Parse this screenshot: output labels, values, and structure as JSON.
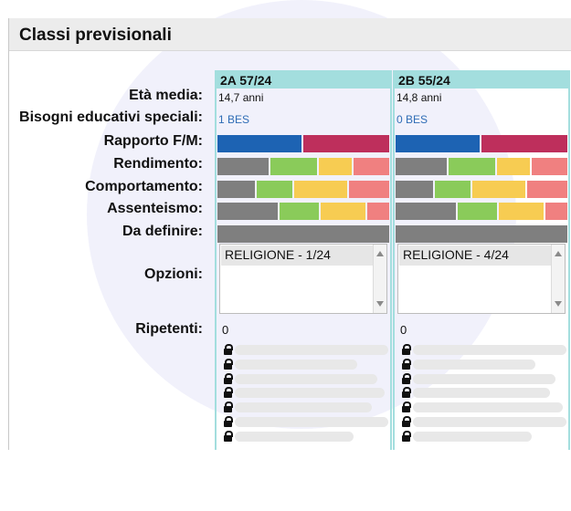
{
  "header": {
    "title": "Classi previsionali"
  },
  "labels": {
    "eta_media": "Età media:",
    "bes": "Bisogni educativi speciali:",
    "rapporto": "Rapporto F/M:",
    "rendimento": "Rendimento:",
    "comportamento": "Comportamento:",
    "assenteismo": "Assenteismo:",
    "da_definire": "Da definire:",
    "opzioni": "Opzioni:",
    "ripetenti": "Ripetenti:"
  },
  "colors": {
    "male": "#1d63b3",
    "female": "#be2f5c",
    "gray": "#7f7f7f",
    "green": "#8acb5a",
    "yellow": "#f7cc52",
    "red": "#f08080",
    "column_accent": "#a3dede"
  },
  "classes": [
    {
      "title": "2A 57/24",
      "eta_media": "14,7 anni",
      "bes": "1 BES",
      "rapporto": [
        0.5,
        0.5
      ],
      "rendimento": [
        0.31,
        0.28,
        0.2,
        0.21
      ],
      "comportamento": [
        0.23,
        0.22,
        0.32,
        0.23
      ],
      "assenteismo": [
        0.36,
        0.24,
        0.27,
        0.13
      ],
      "da_definire": [
        1.0
      ],
      "opzioni": [
        "RELIGIONE - 1/24"
      ],
      "ripetenti": "0"
    },
    {
      "title": "2B 55/24",
      "eta_media": "14,8 anni",
      "bes": "0 BES",
      "rapporto": [
        0.5,
        0.5
      ],
      "rendimento": [
        0.31,
        0.28,
        0.2,
        0.21
      ],
      "comportamento": [
        0.23,
        0.22,
        0.32,
        0.23
      ],
      "assenteismo": [
        0.36,
        0.24,
        0.27,
        0.13
      ],
      "da_definire": [
        1.0
      ],
      "opzioni": [
        "RELIGIONE - 4/24"
      ],
      "ripetenti": "0"
    }
  ]
}
